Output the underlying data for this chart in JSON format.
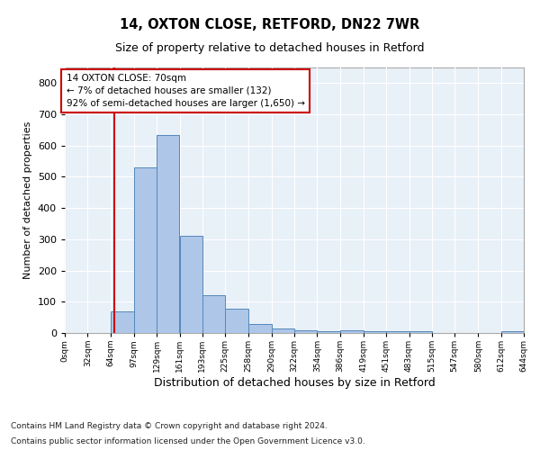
{
  "title1": "14, OXTON CLOSE, RETFORD, DN22 7WR",
  "title2": "Size of property relative to detached houses in Retford",
  "xlabel": "Distribution of detached houses by size in Retford",
  "ylabel": "Number of detached properties",
  "footer1": "Contains HM Land Registry data © Crown copyright and database right 2024.",
  "footer2": "Contains public sector information licensed under the Open Government Licence v3.0.",
  "bin_edges": [
    0,
    32,
    64,
    97,
    129,
    161,
    193,
    225,
    258,
    290,
    322,
    354,
    386,
    419,
    451,
    483,
    515,
    547,
    580,
    612,
    644
  ],
  "bin_labels": [
    "0sqm",
    "32sqm",
    "64sqm",
    "97sqm",
    "129sqm",
    "161sqm",
    "193sqm",
    "225sqm",
    "258sqm",
    "290sqm",
    "322sqm",
    "354sqm",
    "386sqm",
    "419sqm",
    "451sqm",
    "483sqm",
    "515sqm",
    "547sqm",
    "580sqm",
    "612sqm",
    "644sqm"
  ],
  "counts": [
    0,
    0,
    70,
    530,
    635,
    310,
    120,
    78,
    30,
    15,
    10,
    5,
    8,
    5,
    5,
    5,
    0,
    0,
    0,
    5
  ],
  "bar_color": "#aec6e8",
  "bar_edge_color": "#5588bb",
  "bg_color": "#e8f0f8",
  "grid_color": "#ffffff",
  "property_size": 70,
  "vline_color": "#cc0000",
  "annotation_line1": "14 OXTON CLOSE: 70sqm",
  "annotation_line2": "← 7% of detached houses are smaller (132)",
  "annotation_line3": "92% of semi-detached houses are larger (1,650) →",
  "annotation_box_color": "#ffffff",
  "annotation_border_color": "#cc0000",
  "ylim": [
    0,
    850
  ],
  "yticks": [
    0,
    100,
    200,
    300,
    400,
    500,
    600,
    700,
    800
  ],
  "title1_fontsize": 10.5,
  "title2_fontsize": 9,
  "ylabel_fontsize": 8,
  "xlabel_fontsize": 9
}
